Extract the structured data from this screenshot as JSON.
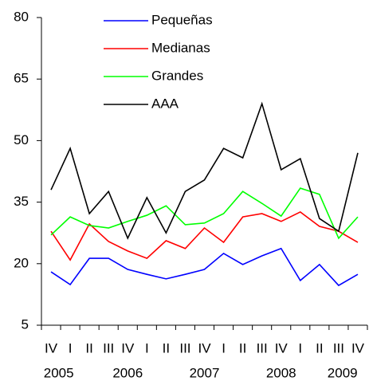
{
  "chart_data": {
    "type": "line",
    "categories": [
      "IV",
      "I",
      "II",
      "III",
      "IV",
      "I",
      "II",
      "III",
      "IV",
      "I",
      "II",
      "III",
      "IV",
      "I",
      "II",
      "III",
      "IV"
    ],
    "years": [
      "2005",
      "2006",
      "2007",
      "2008",
      "2009"
    ],
    "series": [
      {
        "name": "Pequeñas",
        "color": "#0000ff",
        "values": [
          18.0,
          14.9,
          21.3,
          21.3,
          18.6,
          17.4,
          16.3,
          17.4,
          18.6,
          22.5,
          19.8,
          21.9,
          23.7,
          15.9,
          19.8,
          14.7,
          17.4
        ]
      },
      {
        "name": "Medianas",
        "color": "#ff0000",
        "values": [
          27.9,
          20.9,
          29.7,
          25.4,
          23.1,
          21.3,
          25.6,
          23.7,
          28.7,
          25.2,
          31.4,
          32.2,
          30.3,
          32.6,
          29.1,
          27.9,
          25.2
        ]
      },
      {
        "name": "Grandes",
        "color": "#00ff00",
        "values": [
          27.0,
          31.4,
          29.3,
          28.7,
          30.3,
          31.8,
          34.1,
          29.5,
          29.9,
          32.2,
          37.6,
          34.7,
          31.6,
          38.4,
          36.9,
          26.2,
          31.4
        ]
      },
      {
        "name": "AAA",
        "color": "#000000",
        "values": [
          38.0,
          48.1,
          32.2,
          37.6,
          26.2,
          36.1,
          27.5,
          37.6,
          40.4,
          48.1,
          45.8,
          59.0,
          42.9,
          45.6,
          31.0,
          27.9,
          47.0
        ]
      }
    ],
    "ylim": [
      5,
      80
    ],
    "yticks": [
      5,
      20,
      35,
      50,
      65,
      80
    ],
    "grid": false,
    "legend": "top"
  }
}
